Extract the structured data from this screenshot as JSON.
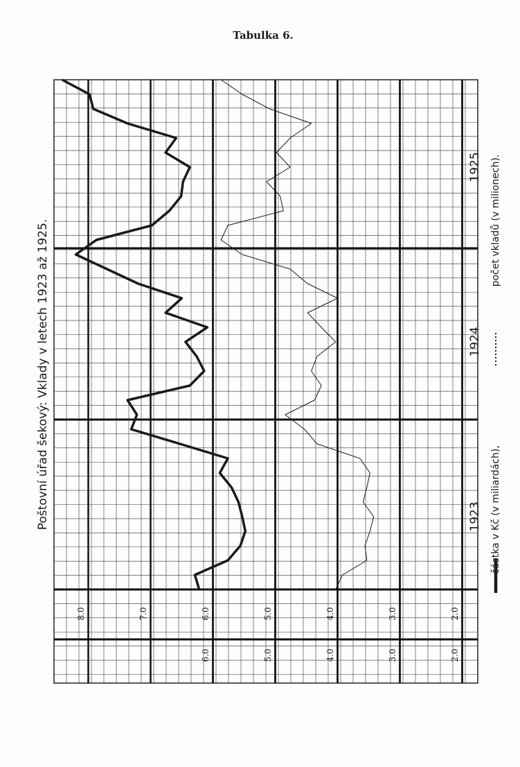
{
  "chart_data": {
    "type": "line",
    "label": "Tabulka 6.",
    "title": "Poštovní úřad šekový: Vklady v letech 1923 až 1925.",
    "categories": [
      null,
      null,
      null,
      null,
      null,
      "1923",
      null,
      null,
      null,
      null,
      null,
      null,
      null,
      null,
      null,
      null,
      null,
      "1924",
      null,
      null,
      null,
      null,
      null,
      null,
      null,
      null,
      null,
      null,
      null,
      "1925",
      null,
      null,
      null,
      null,
      null,
      null
    ],
    "series": [
      {
        "name": "částka v Kč (v miliardách),",
        "color": "#1a1a1a",
        "line_width": 3.5,
        "axis": "y",
        "values": [
          6.22,
          6.29,
          5.76,
          5.56,
          5.48,
          5.53,
          5.59,
          5.7,
          5.89,
          5.76,
          6.53,
          7.31,
          7.22,
          7.37,
          6.37,
          6.14,
          6.26,
          6.44,
          6.09,
          6.76,
          6.5,
          7.2,
          7.7,
          8.2,
          7.87,
          6.98,
          6.7,
          6.51,
          6.48,
          6.37,
          6.76,
          6.59,
          7.37,
          7.92,
          7.98,
          8.42
        ]
      },
      {
        "name": "počet vkladů (v milionech).",
        "color": "#1a1a1a",
        "line_width": 1,
        "axis": "y2",
        "values": [
          4.03,
          3.92,
          3.53,
          3.56,
          3.48,
          3.42,
          3.59,
          3.53,
          3.48,
          3.64,
          4.33,
          4.53,
          4.84,
          4.37,
          4.26,
          4.42,
          4.33,
          4.03,
          4.26,
          4.48,
          4.0,
          4.48,
          4.76,
          5.53,
          5.87,
          5.76,
          4.87,
          4.92,
          5.14,
          4.76,
          4.98,
          4.76,
          4.42,
          5.09,
          5.53,
          5.87
        ]
      }
    ],
    "ylim": [
      8.55,
      1.75
    ],
    "yticks": [
      {
        "value": 8,
        "label": "8.0"
      },
      {
        "value": 7,
        "label": "7.0"
      },
      {
        "value": 6,
        "label": "6.0"
      },
      {
        "value": 5,
        "label": "5.0"
      },
      {
        "value": 4,
        "label": "4.0"
      },
      {
        "value": 3,
        "label": "3.0"
      },
      {
        "value": 2,
        "label": "2.0"
      }
    ],
    "y2lim": [
      8.55,
      1.75
    ],
    "y2ticks": [
      {
        "value": 6,
        "label": "6.0"
      },
      {
        "value": 5,
        "label": "5.0"
      },
      {
        "value": 4,
        "label": "4.0"
      },
      {
        "value": 3,
        "label": "3.0"
      },
      {
        "value": 2,
        "label": "2.0"
      }
    ],
    "grid": true
  }
}
